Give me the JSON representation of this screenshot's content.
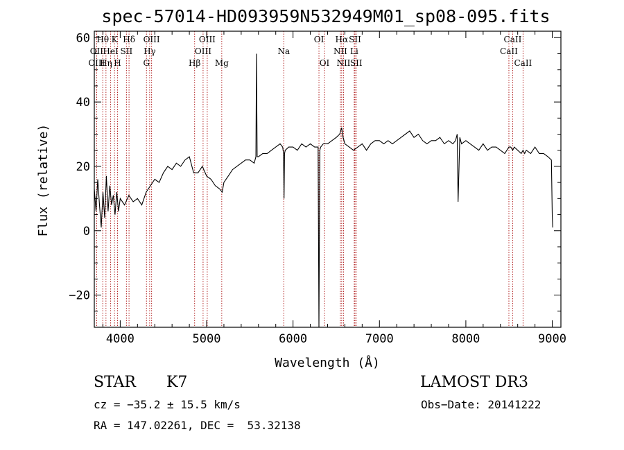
{
  "chart_data": {
    "type": "line",
    "title": "spec-57014-HD093959N532949M01_sp08-095.fits",
    "xlabel": "Wavelength (Å)",
    "ylabel": "Flux (relative)",
    "xlim": [
      3700,
      9100
    ],
    "ylim": [
      -30,
      62
    ],
    "xticks": [
      4000,
      5000,
      6000,
      7000,
      8000,
      9000
    ],
    "yticks": [
      -20,
      0,
      20,
      40,
      60
    ],
    "series": [
      {
        "name": "spectrum",
        "color": "#000000",
        "x": [
          3700,
          3720,
          3740,
          3760,
          3780,
          3800,
          3820,
          3840,
          3860,
          3880,
          3900,
          3920,
          3940,
          3960,
          3980,
          4000,
          4050,
          4100,
          4150,
          4200,
          4250,
          4300,
          4350,
          4400,
          4450,
          4500,
          4550,
          4600,
          4650,
          4700,
          4750,
          4800,
          4850,
          4900,
          4950,
          5000,
          5050,
          5100,
          5150,
          5180,
          5200,
          5250,
          5300,
          5350,
          5400,
          5450,
          5500,
          5550,
          5570,
          5577,
          5585,
          5600,
          5650,
          5700,
          5750,
          5800,
          5850,
          5880,
          5890,
          5896,
          5902,
          5910,
          5950,
          6000,
          6050,
          6100,
          6150,
          6200,
          6250,
          6290,
          6300,
          6310,
          6320,
          6350,
          6400,
          6450,
          6500,
          6540,
          6563,
          6580,
          6600,
          6650,
          6700,
          6750,
          6800,
          6850,
          6900,
          6950,
          7000,
          7050,
          7100,
          7150,
          7200,
          7250,
          7300,
          7350,
          7400,
          7450,
          7500,
          7550,
          7600,
          7650,
          7700,
          7750,
          7800,
          7850,
          7880,
          7900,
          7910,
          7930,
          7950,
          8000,
          8050,
          8100,
          8150,
          8200,
          8250,
          8300,
          8350,
          8400,
          8450,
          8498,
          8520,
          8542,
          8560,
          8600,
          8640,
          8662,
          8680,
          8700,
          8750,
          8800,
          8850,
          8900,
          8950,
          8990,
          9000,
          9005
        ],
        "values": [
          13,
          6,
          16,
          8,
          1,
          12,
          4,
          17,
          6,
          14,
          8,
          11,
          5,
          12,
          6,
          10,
          8,
          11,
          9,
          10,
          8,
          12,
          14,
          16,
          15,
          18,
          20,
          19,
          21,
          20,
          22,
          23,
          18,
          18,
          20,
          17,
          16,
          14,
          13,
          12,
          15,
          17,
          19,
          20,
          21,
          22,
          22,
          21,
          23,
          55,
          23,
          23,
          24,
          24,
          25,
          26,
          27,
          26,
          24,
          10,
          24,
          25,
          26,
          26,
          25,
          27,
          26,
          27,
          26,
          26,
          -30,
          25,
          26,
          27,
          27,
          28,
          29,
          30,
          32,
          29,
          27,
          26,
          25,
          26,
          27,
          25,
          27,
          28,
          28,
          27,
          28,
          27,
          28,
          29,
          30,
          31,
          29,
          30,
          28,
          27,
          28,
          28,
          29,
          27,
          28,
          27,
          28,
          30,
          9,
          29,
          27,
          28,
          27,
          26,
          25,
          27,
          25,
          26,
          26,
          25,
          24,
          26,
          26,
          25,
          26,
          25,
          24,
          25,
          24,
          25,
          24,
          26,
          24,
          24,
          23,
          22,
          5,
          1
        ]
      }
    ],
    "spectral_lines": [
      {
        "label": "Hθ",
        "wavelength": 3798,
        "tier": 0
      },
      {
        "label": "OII",
        "wavelength": 3727,
        "tier": 1
      },
      {
        "label": "OIII",
        "wavelength": 3727,
        "tier": 2
      },
      {
        "label": "HeI",
        "wavelength": 3889,
        "tier": 1
      },
      {
        "label": "Hη",
        "wavelength": 3835,
        "tier": 2
      },
      {
        "label": "K",
        "wavelength": 3934,
        "tier": 0
      },
      {
        "label": "SII",
        "wavelength": 4072,
        "tier": 1
      },
      {
        "label": "H",
        "wavelength": 3969,
        "tier": 2
      },
      {
        "label": "Hδ",
        "wavelength": 4102,
        "tier": 0
      },
      {
        "label": "OIII",
        "wavelength": 4363,
        "tier": 0
      },
      {
        "label": "Hγ",
        "wavelength": 4341,
        "tier": 1
      },
      {
        "label": "G",
        "wavelength": 4304,
        "tier": 2
      },
      {
        "label": "Hβ",
        "wavelength": 4861,
        "tier": 2
      },
      {
        "label": "OIII",
        "wavelength": 5007,
        "tier": 0
      },
      {
        "label": "OIII",
        "wavelength": 4959,
        "tier": 1
      },
      {
        "label": "Mg",
        "wavelength": 5175,
        "tier": 2
      },
      {
        "label": "Na",
        "wavelength": 5893,
        "tier": 1
      },
      {
        "label": "OI",
        "wavelength": 6300,
        "tier": 0
      },
      {
        "label": "OI",
        "wavelength": 6364,
        "tier": 2
      },
      {
        "label": "Hα",
        "wavelength": 6563,
        "tier": 0
      },
      {
        "label": "SII",
        "wavelength": 6717,
        "tier": 0
      },
      {
        "label": "NII",
        "wavelength": 6548,
        "tier": 1
      },
      {
        "label": "Li",
        "wavelength": 6708,
        "tier": 1
      },
      {
        "label": "NII",
        "wavelength": 6584,
        "tier": 2
      },
      {
        "label": "SII",
        "wavelength": 6731,
        "tier": 2
      },
      {
        "label": "CaII",
        "wavelength": 8542,
        "tier": 0
      },
      {
        "label": "CaII",
        "wavelength": 8498,
        "tier": 1
      },
      {
        "label": "CaII",
        "wavelength": 8662,
        "tier": 2
      }
    ],
    "line_marker_color": "#b22222"
  },
  "info": {
    "class": "STAR",
    "subclass": "K7",
    "survey": "LAMOST DR3",
    "cz": "cz = −35.2 ± 15.5 km/s",
    "obs_date": "Obs−Date: 20141222",
    "coords": "RA = 147.02261, DEC =  53.32138"
  }
}
